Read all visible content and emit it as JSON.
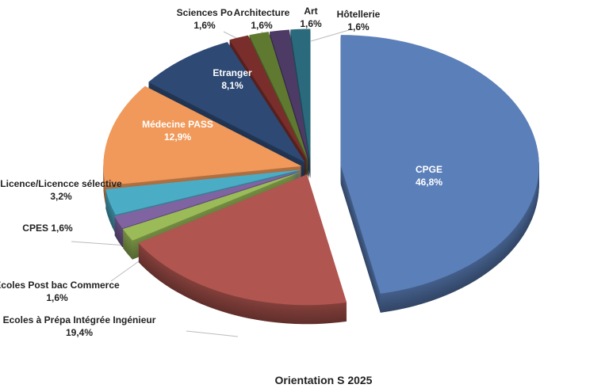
{
  "chart_data": {
    "type": "pie",
    "style": "3D exploded pie",
    "title": "Orientation S 2025",
    "legend": "none",
    "slices": [
      {
        "label": "CPGE",
        "value": 46.8,
        "display": "46,8%",
        "color": "#5b7fb9"
      },
      {
        "label": "Ecoles à Prépa Intégrée Ingénieur",
        "value": 19.4,
        "display": "19,4%",
        "color": "#b0554f"
      },
      {
        "label": "Ecoles Post bac Commerce",
        "value": 1.6,
        "display": "1,6%",
        "color": "#9bbb59"
      },
      {
        "label": "CPES",
        "value": 1.6,
        "display": "1,6%",
        "color": "#8064a2"
      },
      {
        "label": "Licence/Licencce sélective",
        "value": 3.2,
        "display": "3,2%",
        "color": "#4bacc6"
      },
      {
        "label": "Médecine PASS",
        "value": 12.9,
        "display": "12,9%",
        "color": "#f0995a"
      },
      {
        "label": "Etranger",
        "value": 8.1,
        "display": "8,1%",
        "color": "#2e4a74"
      },
      {
        "label": "Sciences Po",
        "value": 1.6,
        "display": "1,6%",
        "color": "#7a2e2c"
      },
      {
        "label": "Architecture",
        "value": 1.6,
        "display": "1,6%",
        "color": "#5f7a30"
      },
      {
        "label": "Art",
        "value": 1.6,
        "display": "1,6%",
        "color": "#4d3b66"
      },
      {
        "label": "Hôtellerie",
        "value": 1.6,
        "display": "1,6%",
        "color": "#2a6a7c"
      }
    ]
  }
}
